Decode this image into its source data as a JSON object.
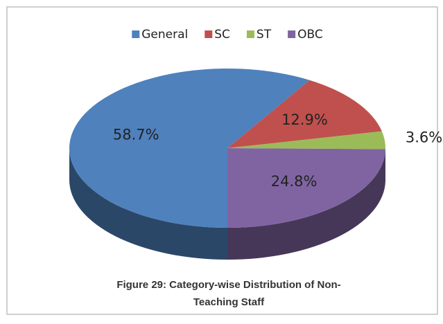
{
  "chart_data": {
    "type": "pie",
    "title": [
      "Figure 29: Category-wise Distribution of Non-",
      "Teaching Staff"
    ],
    "categories": [
      "General",
      "SC",
      "ST",
      "OBC"
    ],
    "values": [
      58.7,
      12.9,
      3.6,
      24.8
    ],
    "value_labels": [
      "58.7%",
      "12.9%",
      "3.6%",
      "24.8%"
    ],
    "colors": [
      "#4f81bd",
      "#c0504d",
      "#9bbb59",
      "#8064a2"
    ],
    "legend": "top"
  }
}
